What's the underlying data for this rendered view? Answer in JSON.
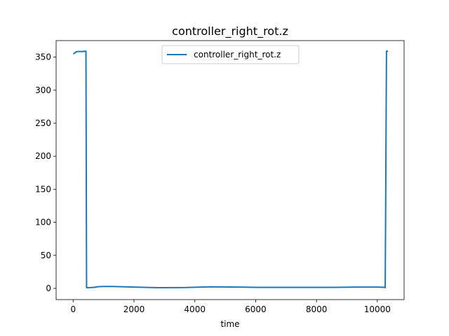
{
  "chart_data": {
    "type": "line",
    "title": "controller_right_rot.z",
    "xlabel": "time",
    "ylabel": "",
    "xlim": [
      -560,
      10880
    ],
    "ylim": [
      -17,
      375
    ],
    "xticks": [
      0,
      2000,
      4000,
      6000,
      8000,
      10000
    ],
    "yticks": [
      0,
      50,
      100,
      150,
      200,
      250,
      300,
      350
    ],
    "grid": false,
    "legend": "upper center",
    "series": [
      {
        "name": "controller_right_rot.z",
        "color": "#1f77b4",
        "x": [
          0,
          50,
          100,
          150,
          200,
          300,
          400,
          420,
          440,
          600,
          700,
          800,
          1000,
          1300,
          2000,
          2800,
          3700,
          4500,
          5500,
          6000,
          7000,
          8000,
          8600,
          9400,
          10000,
          10250,
          10260,
          10300,
          10350
        ],
        "y": [
          355,
          356,
          358,
          358.5,
          358.5,
          358.5,
          359,
          359,
          1,
          1.2,
          1.5,
          2.5,
          2.8,
          2.8,
          2,
          1,
          1.2,
          2.3,
          2,
          1.5,
          1.5,
          1.5,
          1.5,
          2,
          2,
          1.5,
          1,
          359,
          359
        ]
      }
    ]
  }
}
